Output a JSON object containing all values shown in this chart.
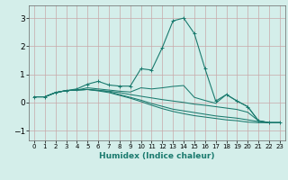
{
  "xlabel": "Humidex (Indice chaleur)",
  "bg_color": "#d4eeea",
  "grid_color": "#c8a8a8",
  "line_color": "#1a7a6e",
  "spine_color": "#666666",
  "xlim": [
    -0.5,
    23.5
  ],
  "ylim": [
    -1.35,
    3.45
  ],
  "xticks": [
    0,
    1,
    2,
    3,
    4,
    5,
    6,
    7,
    8,
    9,
    10,
    11,
    12,
    13,
    14,
    15,
    16,
    17,
    18,
    19,
    20,
    21,
    22,
    23
  ],
  "yticks": [
    -1,
    0,
    1,
    2,
    3
  ],
  "curves": [
    {
      "y": [
        0.2,
        0.2,
        0.35,
        0.42,
        0.48,
        0.65,
        0.75,
        0.62,
        0.58,
        0.58,
        1.2,
        1.15,
        1.95,
        2.9,
        3.0,
        2.45,
        1.2,
        0.05,
        0.28,
        0.05,
        -0.15,
        -0.65,
        -0.72,
        -0.72
      ],
      "marker": true
    },
    {
      "y": [
        0.2,
        0.2,
        0.35,
        0.42,
        0.44,
        0.52,
        0.48,
        0.44,
        0.4,
        0.37,
        0.52,
        0.48,
        0.52,
        0.57,
        0.6,
        0.18,
        0.07,
        -0.03,
        0.28,
        0.05,
        -0.15,
        -0.65,
        -0.72,
        -0.72
      ],
      "marker": false
    },
    {
      "y": [
        0.2,
        0.2,
        0.35,
        0.42,
        0.44,
        0.46,
        0.43,
        0.4,
        0.35,
        0.28,
        0.22,
        0.16,
        0.1,
        0.05,
        0.0,
        -0.06,
        -0.1,
        -0.15,
        -0.2,
        -0.25,
        -0.35,
        -0.65,
        -0.72,
        -0.72
      ],
      "marker": false
    },
    {
      "y": [
        0.2,
        0.2,
        0.35,
        0.42,
        0.44,
        0.46,
        0.43,
        0.38,
        0.28,
        0.18,
        0.08,
        -0.04,
        -0.14,
        -0.24,
        -0.3,
        -0.36,
        -0.42,
        -0.48,
        -0.52,
        -0.56,
        -0.62,
        -0.68,
        -0.72,
        -0.72
      ],
      "marker": false
    },
    {
      "y": [
        0.2,
        0.2,
        0.35,
        0.42,
        0.44,
        0.46,
        0.41,
        0.35,
        0.25,
        0.15,
        0.03,
        -0.1,
        -0.22,
        -0.32,
        -0.4,
        -0.47,
        -0.52,
        -0.57,
        -0.62,
        -0.65,
        -0.7,
        -0.72,
        -0.72,
        -0.72
      ],
      "marker": false
    }
  ]
}
